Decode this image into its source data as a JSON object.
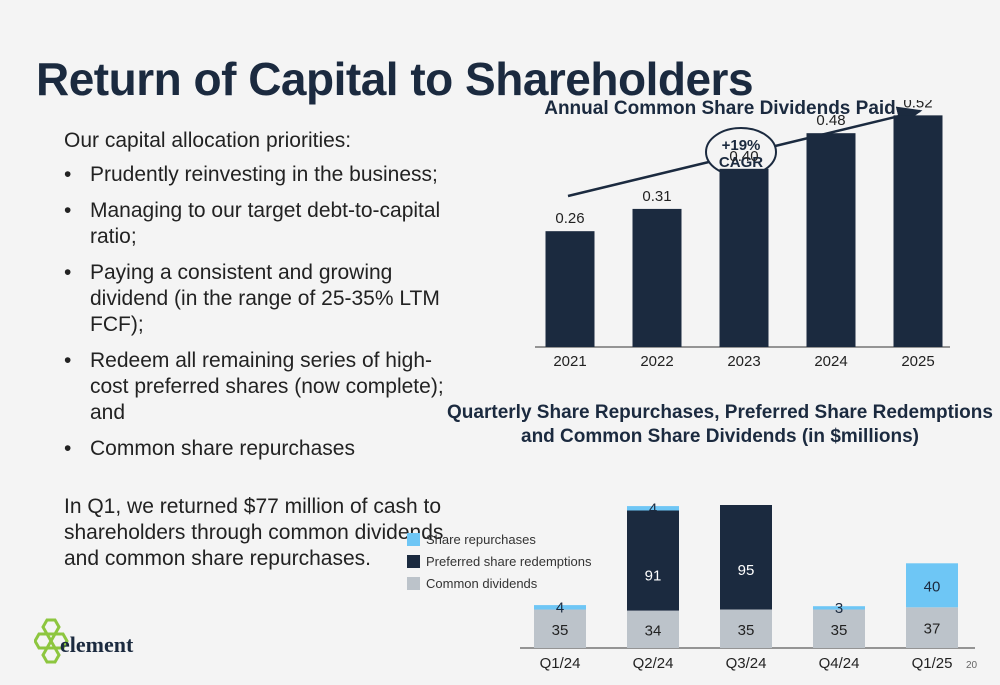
{
  "title": "Return of Capital to Shareholders",
  "priorities": {
    "intro": "Our capital allocation priorities:",
    "items": [
      "Prudently reinvesting in the business;",
      "Managing to our target debt-to-capital ratio;",
      "Paying a consistent and growing dividend (in the range of 25-35% LTM FCF);",
      "Redeem all remaining series of high-cost preferred shares (now complete); and",
      "Common share repurchases"
    ]
  },
  "summary": "In Q1, we returned $77 million of cash to shareholders through common dividends and common share repurchases.",
  "logo_text": "element",
  "page_number": "20",
  "colors": {
    "navy": "#1b2a3f",
    "light_blue": "#6ec6f5",
    "gray": "#bcc3ca"
  },
  "chart_data": [
    {
      "type": "bar",
      "title": "Annual Common Share Dividends Paid",
      "categories": [
        "2021",
        "2022",
        "2023",
        "2024",
        "2025"
      ],
      "values": [
        0.26,
        0.31,
        0.4,
        0.48,
        0.52
      ],
      "value_labels": [
        "0.26",
        "0.31",
        "0.40",
        "0.48",
        "0.52"
      ],
      "annotation": {
        "line1": "+19%",
        "line2": "CAGR"
      },
      "ylim": [
        0,
        0.55
      ],
      "grid": false
    },
    {
      "type": "bar",
      "stacked": true,
      "title_line1": "Quarterly Share Repurchases, Preferred Share  Redemptions",
      "title_line2": "and Common Share Dividends (in $millions)",
      "categories": [
        "Q1/24",
        "Q2/24",
        "Q3/24",
        "Q4/24",
        "Q1/25"
      ],
      "series": [
        {
          "name": "Common dividends",
          "values": [
            35,
            34,
            35,
            35,
            37
          ]
        },
        {
          "name": "Preferred share redemptions",
          "values": [
            0,
            91,
            95,
            0,
            0
          ]
        },
        {
          "name": "Share repurchases",
          "values": [
            4,
            4,
            0,
            3,
            40
          ]
        }
      ],
      "legend_order": [
        "Share repurchases",
        "Preferred share redemptions",
        "Common dividends"
      ],
      "legend_position": "left",
      "ylim": [
        0,
        130
      ],
      "grid": false
    }
  ]
}
